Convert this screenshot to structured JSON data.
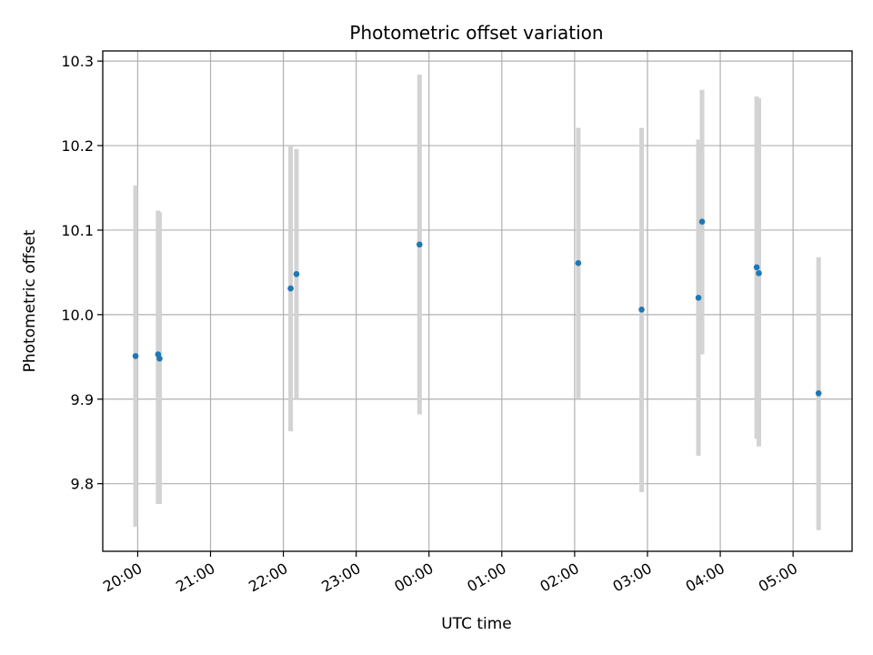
{
  "chart_data": {
    "type": "scatter",
    "title": "Photometric offset variation",
    "xlabel": "UTC time",
    "ylabel": "Photometric offset",
    "x_unit": "hours since 20:00 UTC (axis spans midnight)",
    "xlim": [
      -0.48,
      9.81
    ],
    "ylim": [
      9.72,
      10.312
    ],
    "grid": true,
    "x_ticks": [
      {
        "value": 0,
        "label": "20:00"
      },
      {
        "value": 1,
        "label": "21:00"
      },
      {
        "value": 2,
        "label": "22:00"
      },
      {
        "value": 3,
        "label": "23:00"
      },
      {
        "value": 4,
        "label": "00:00"
      },
      {
        "value": 5,
        "label": "01:00"
      },
      {
        "value": 6,
        "label": "02:00"
      },
      {
        "value": 7,
        "label": "03:00"
      },
      {
        "value": 8,
        "label": "04:00"
      },
      {
        "value": 9,
        "label": "05:00"
      }
    ],
    "y_ticks": [
      {
        "value": 9.8,
        "label": "9.8"
      },
      {
        "value": 9.9,
        "label": "9.9"
      },
      {
        "value": 10.0,
        "label": "10.0"
      },
      {
        "value": 10.1,
        "label": "10.1"
      },
      {
        "value": 10.2,
        "label": "10.2"
      },
      {
        "value": 10.3,
        "label": "10.3"
      }
    ],
    "series": [
      {
        "marker_color": "#1f77b4",
        "error_color": "#d3d3d3",
        "points": [
          {
            "x": -0.03,
            "y": 9.951,
            "low": 9.749,
            "high": 10.153
          },
          {
            "x": 0.28,
            "y": 9.953,
            "low": 9.776,
            "high": 10.123
          },
          {
            "x": 0.3,
            "y": 9.948,
            "low": 9.776,
            "high": 10.121
          },
          {
            "x": 2.1,
            "y": 10.031,
            "low": 9.862,
            "high": 10.199
          },
          {
            "x": 2.18,
            "y": 10.048,
            "low": 9.9,
            "high": 10.196
          },
          {
            "x": 3.87,
            "y": 10.083,
            "low": 9.882,
            "high": 10.284
          },
          {
            "x": 6.05,
            "y": 10.061,
            "low": 9.901,
            "high": 10.221
          },
          {
            "x": 6.92,
            "y": 10.006,
            "low": 9.79,
            "high": 10.221
          },
          {
            "x": 7.7,
            "y": 10.02,
            "low": 9.833,
            "high": 10.207
          },
          {
            "x": 7.75,
            "y": 10.11,
            "low": 9.953,
            "high": 10.266
          },
          {
            "x": 8.5,
            "y": 10.056,
            "low": 9.853,
            "high": 10.258
          },
          {
            "x": 8.53,
            "y": 10.049,
            "low": 9.844,
            "high": 10.256
          },
          {
            "x": 9.35,
            "y": 9.907,
            "low": 9.745,
            "high": 10.068
          }
        ]
      }
    ]
  }
}
